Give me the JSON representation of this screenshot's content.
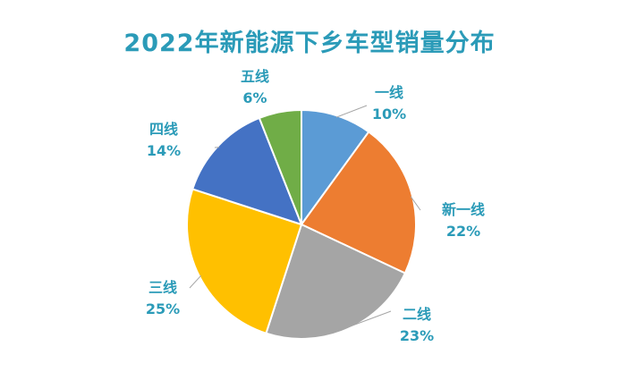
{
  "chart_data": {
    "type": "pie",
    "title": "2022年新能源下乡车型销量分布",
    "slices": [
      {
        "label": "一线",
        "value": 10,
        "pct": "10%",
        "color": "#5b9bd5"
      },
      {
        "label": "新一线",
        "value": 22,
        "pct": "22%",
        "color": "#ed7d31"
      },
      {
        "label": "二线",
        "value": 23,
        "pct": "23%",
        "color": "#a5a5a5"
      },
      {
        "label": "三线",
        "value": 25,
        "pct": "25%",
        "color": "#ffc000"
      },
      {
        "label": "四线",
        "value": 14,
        "pct": "14%",
        "color": "#4472c4"
      },
      {
        "label": "五线",
        "value": 6,
        "pct": "6%",
        "color": "#70ad47"
      }
    ],
    "start_angle": "12 o'clock",
    "direction": "clockwise",
    "legend": "none"
  }
}
